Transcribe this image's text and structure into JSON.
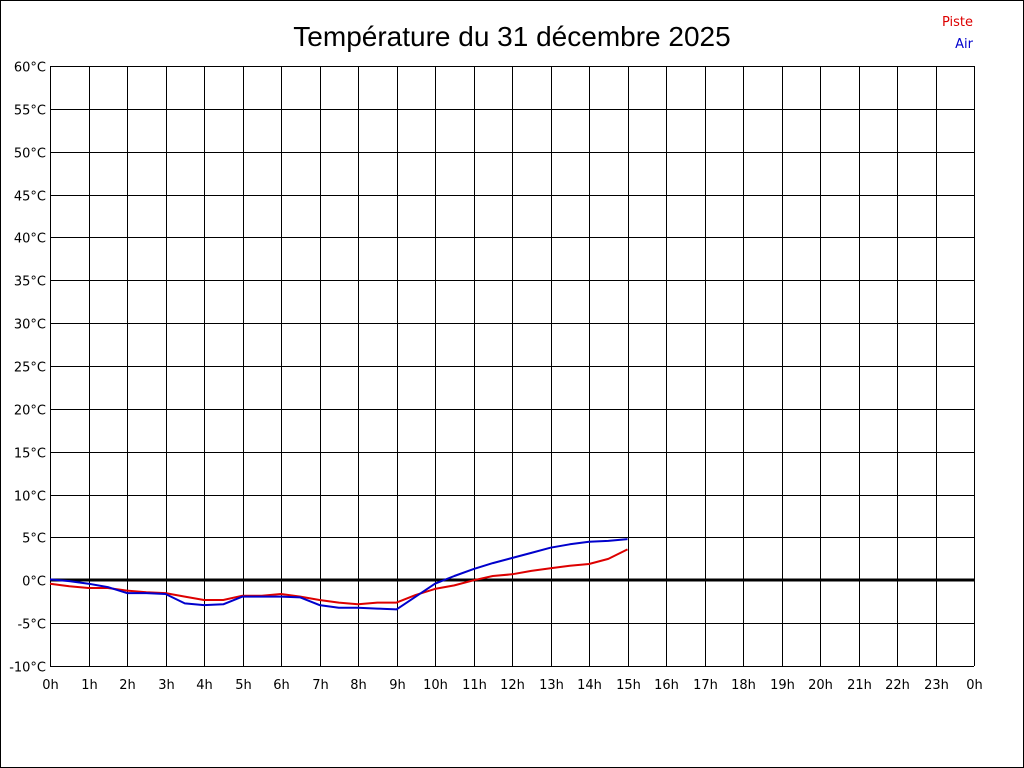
{
  "chart_data": {
    "type": "line",
    "title": "Température du 31 décembre 2025",
    "xlabel": "",
    "ylabel": "",
    "x_ticks": [
      "0h",
      "1h",
      "2h",
      "3h",
      "4h",
      "5h",
      "6h",
      "7h",
      "8h",
      "9h",
      "10h",
      "11h",
      "12h",
      "13h",
      "14h",
      "15h",
      "16h",
      "17h",
      "18h",
      "19h",
      "20h",
      "21h",
      "22h",
      "23h",
      "0h"
    ],
    "y_ticks": [
      "60°C",
      "55°C",
      "50°C",
      "45°C",
      "40°C",
      "35°C",
      "30°C",
      "25°C",
      "20°C",
      "15°C",
      "10°C",
      "5°C",
      "0°C",
      "-5°C",
      "-10°C"
    ],
    "xlim": [
      0,
      24
    ],
    "ylim": [
      -10,
      60
    ],
    "grid": true,
    "zero_line": true,
    "legend_position": "top-right",
    "series": [
      {
        "name": "Piste",
        "color": "#dd0000",
        "x": [
          0,
          0.5,
          1,
          1.5,
          2,
          2.5,
          3,
          3.5,
          4,
          4.5,
          5,
          5.5,
          6,
          6.5,
          7,
          7.5,
          8,
          8.5,
          9,
          9.5,
          10,
          10.5,
          11,
          11.5,
          12,
          12.5,
          13,
          13.5,
          14,
          14.5,
          15
        ],
        "y": [
          -0.4,
          -0.7,
          -0.9,
          -0.9,
          -1.2,
          -1.4,
          -1.5,
          -1.9,
          -2.3,
          -2.3,
          -1.8,
          -1.8,
          -1.6,
          -1.9,
          -2.3,
          -2.6,
          -2.8,
          -2.6,
          -2.6,
          -1.7,
          -1.0,
          -0.6,
          0.0,
          0.5,
          0.7,
          1.1,
          1.4,
          1.7,
          1.9,
          2.5,
          3.6
        ]
      },
      {
        "name": "Air",
        "color": "#0000cc",
        "x": [
          0,
          0.5,
          1,
          1.5,
          2,
          2.5,
          3,
          3.5,
          4,
          4.5,
          5,
          5.5,
          6,
          6.5,
          7,
          7.5,
          8,
          8.5,
          9,
          9.5,
          10,
          10.5,
          11,
          11.5,
          12,
          12.5,
          13,
          13.5,
          14,
          14.5,
          15
        ],
        "y": [
          0.1,
          -0.1,
          -0.4,
          -0.8,
          -1.5,
          -1.5,
          -1.6,
          -2.7,
          -2.9,
          -2.8,
          -1.9,
          -1.9,
          -1.9,
          -2.0,
          -2.9,
          -3.2,
          -3.2,
          -3.3,
          -3.4,
          -1.9,
          -0.4,
          0.5,
          1.3,
          2.0,
          2.6,
          3.2,
          3.8,
          4.2,
          4.5,
          4.6,
          4.8
        ]
      }
    ]
  }
}
